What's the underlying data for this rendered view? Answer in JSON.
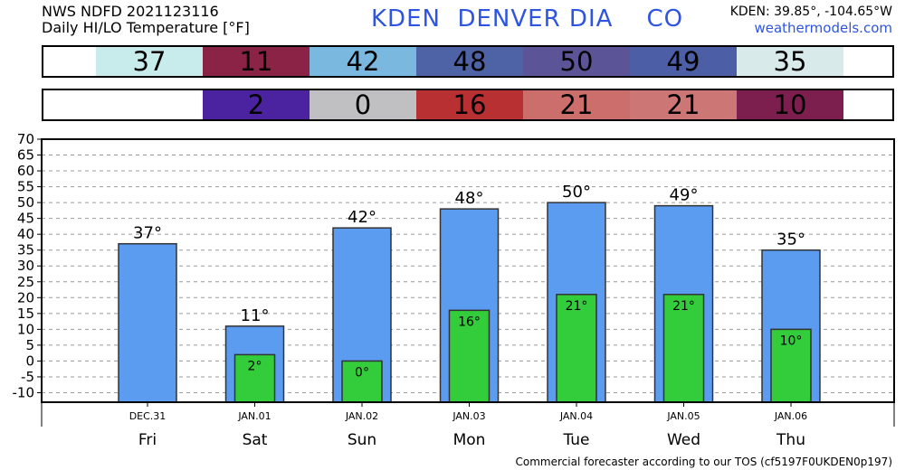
{
  "header": {
    "line1": "NWS NDFD 2021123116",
    "line2": "Daily HI/LO Temperature [°F]",
    "station": "KDEN  DENVER DIA    CO",
    "coords": "KDEN: 39.85°, -104.65°W",
    "site": "weathermodels.com"
  },
  "hi_row": [
    {
      "text": "37",
      "color": "#c8ecec"
    },
    {
      "text": "11",
      "color": "#8b2347"
    },
    {
      "text": "42",
      "color": "#7ab8e0"
    },
    {
      "text": "48",
      "color": "#4e62a6"
    },
    {
      "text": "50",
      "color": "#5b5598"
    },
    {
      "text": "49",
      "color": "#4b5ea6"
    },
    {
      "text": "35",
      "color": "#d8ebea"
    }
  ],
  "lo_row": [
    {
      "text": "",
      "color": "#ffffff"
    },
    {
      "text": "2",
      "color": "#4b23a0"
    },
    {
      "text": "0",
      "color": "#c0c0c2"
    },
    {
      "text": "16",
      "color": "#b83032"
    },
    {
      "text": "21",
      "color": "#cc6e6c"
    },
    {
      "text": "21",
      "color": "#cc7676"
    },
    {
      "text": "10",
      "color": "#7c1f4e"
    }
  ],
  "chart_data": {
    "type": "bar",
    "categories": [
      "DEC.31",
      "JAN.01",
      "JAN.02",
      "JAN.03",
      "JAN.04",
      "JAN.05",
      "JAN.06"
    ],
    "days": [
      "Fri",
      "Sat",
      "Sun",
      "Mon",
      "Tue",
      "Wed",
      "Thu"
    ],
    "series": [
      {
        "values": [
          37,
          11,
          42,
          48,
          50,
          49,
          35
        ],
        "labels": [
          "37°",
          "11°",
          "42°",
          "48°",
          "50°",
          "49°",
          "35°"
        ],
        "color": "#5b9bf0"
      },
      {
        "values": [
          null,
          2,
          0,
          16,
          21,
          21,
          10
        ],
        "labels": [
          "",
          "2°",
          "0°",
          "16°",
          "21°",
          "21°",
          "10°"
        ],
        "color": "#33cc3a"
      }
    ],
    "ylim": [
      -13,
      70
    ],
    "yticks": [
      "70",
      "65",
      "60",
      "55",
      "50",
      "45",
      "40",
      "35",
      "30",
      "25",
      "20",
      "15",
      "10",
      "5",
      "0",
      "-5",
      "-10"
    ],
    "grid": true
  },
  "footer": "Commercial forecaster according to our TOS (cf5197F0UKDEN0p197)"
}
